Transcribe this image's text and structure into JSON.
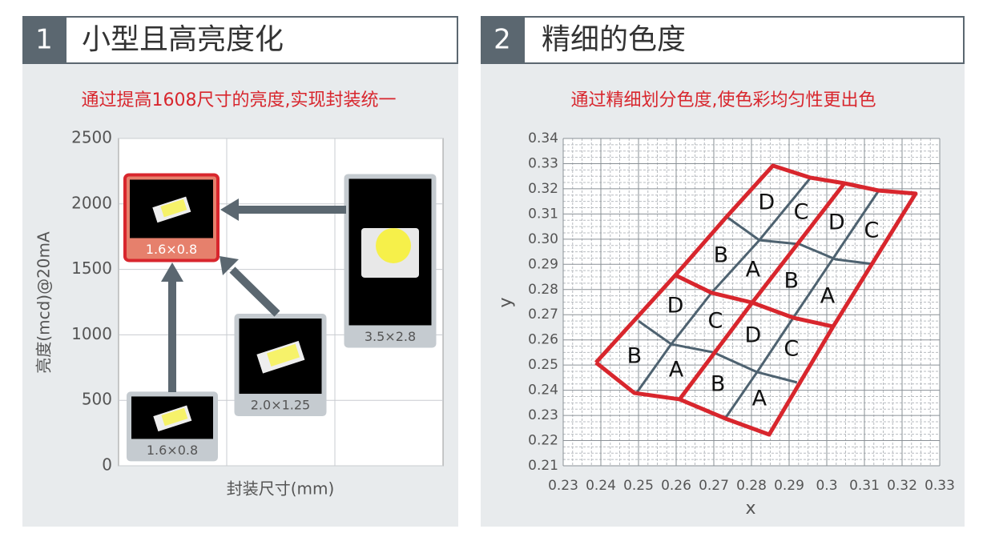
{
  "panels": [
    {
      "number": "1",
      "title": "小型且高亮度化",
      "subtitle": "通过提高1608尺寸的亮度,实现封装统一",
      "y_label": "亮度(mcd)@20mA",
      "x_label": "封装尺寸(mm)",
      "ylim": [
        0,
        2500
      ],
      "yticks": [
        0,
        500,
        1000,
        1500,
        2000,
        2500
      ],
      "packages": [
        {
          "label": "1.6×0.8",
          "brightness": 300
        },
        {
          "label": "2.0×1.25",
          "brightness": 770
        },
        {
          "label": "3.5×2.8",
          "brightness": 1565
        },
        {
          "label": "1.6×0.8",
          "brightness": 1895,
          "highlight": true
        }
      ]
    },
    {
      "number": "2",
      "title": "精细的色度",
      "subtitle": "通过精细划分色度,使色彩均匀性更出色",
      "x_label": "x",
      "y_label": "y",
      "xlim": [
        0.23,
        0.33
      ],
      "xticks": [
        0.23,
        0.24,
        0.25,
        0.26,
        0.27,
        0.28,
        0.29,
        0.3,
        0.31,
        0.32,
        0.33
      ],
      "ylim": [
        0.21,
        0.34
      ],
      "yticks": [
        0.21,
        0.22,
        0.23,
        0.24,
        0.25,
        0.26,
        0.27,
        0.28,
        0.29,
        {
          "value": 0.3,
          "label": "0.30"
        },
        0.31,
        0.32,
        0.33,
        0.34
      ],
      "minor_grid": true,
      "boundaries": [
        {
          "color": "#d8262d",
          "x": [
            0.2387,
            0.2489,
            0.2609,
            0.273,
            0.2847,
            0.3017,
            0.3236,
            0.3138,
            0.3047,
            0.2957,
            0.2857,
            0.2734,
            0.2598,
            0.2387
          ],
          "y": [
            0.251,
            0.2389,
            0.2364,
            0.2288,
            0.2224,
            0.2653,
            0.3181,
            0.3193,
            0.3222,
            0.3244,
            0.3292,
            0.3089,
            0.2857,
            0.251
          ]
        },
        {
          "color": "#d8262d",
          "x": [
            0.2598,
            0.2694,
            0.2802,
            0.2911,
            0.3017
          ],
          "y": [
            0.2857,
            0.2787,
            0.2748,
            0.2688,
            0.2653
          ]
        },
        {
          "color": "#d8262d",
          "x": [
            0.3047,
            0.2802,
            0.2609
          ],
          "y": [
            0.3222,
            0.2748,
            0.2364
          ]
        },
        {
          "color": "#4e6270",
          "x": [
            0.2957,
            0.2821,
            0.2694
          ],
          "y": [
            0.3244,
            0.2996,
            0.2787
          ]
        },
        {
          "color": "#4e6270",
          "x": [
            0.2734,
            0.2821,
            0.2928
          ],
          "y": [
            0.3089,
            0.2996,
            0.298
          ]
        },
        {
          "color": "#4e6270",
          "x": [
            0.2928,
            0.3023,
            0.3123
          ],
          "y": [
            0.298,
            0.292,
            0.2901
          ]
        },
        {
          "color": "#4e6270",
          "x": [
            0.3138,
            0.2911
          ],
          "y": [
            0.3193,
            0.2688
          ]
        },
        {
          "color": "#4e6270",
          "x": [
            0.25,
            0.2587,
            0.2698
          ],
          "y": [
            0.2675,
            0.2583,
            0.2551
          ]
        },
        {
          "color": "#4e6270",
          "x": [
            0.2694,
            0.2587,
            0.2496
          ],
          "y": [
            0.2787,
            0.2583,
            0.2392
          ]
        },
        {
          "color": "#4e6270",
          "x": [
            0.2698,
            0.2815,
            0.2921
          ],
          "y": [
            0.2551,
            0.2472,
            0.2431
          ]
        },
        {
          "color": "#4e6270",
          "x": [
            0.2911,
            0.2815,
            0.273
          ],
          "y": [
            0.2688,
            0.2472,
            0.2288
          ]
        }
      ],
      "bins": [
        {
          "label": "D",
          "x": 0.284,
          "y": 0.3143
        },
        {
          "label": "C",
          "x": 0.2932,
          "y": 0.3104
        },
        {
          "label": "D",
          "x": 0.3026,
          "y": 0.3063
        },
        {
          "label": "C",
          "x": 0.3119,
          "y": 0.3031
        },
        {
          "label": "B",
          "x": 0.2719,
          "y": 0.2933
        },
        {
          "label": "A",
          "x": 0.2804,
          "y": 0.2876
        },
        {
          "label": "B",
          "x": 0.2906,
          "y": 0.2831
        },
        {
          "label": "A",
          "x": 0.3002,
          "y": 0.2771
        },
        {
          "label": "D",
          "x": 0.2598,
          "y": 0.2733
        },
        {
          "label": "C",
          "x": 0.2704,
          "y": 0.2672
        },
        {
          "label": "D",
          "x": 0.2804,
          "y": 0.2615
        },
        {
          "label": "C",
          "x": 0.2906,
          "y": 0.2561
        },
        {
          "label": "B",
          "x": 0.2489,
          "y": 0.2532
        },
        {
          "label": "A",
          "x": 0.26,
          "y": 0.2478
        },
        {
          "label": "B",
          "x": 0.2711,
          "y": 0.2421
        },
        {
          "label": "A",
          "x": 0.2821,
          "y": 0.2364
        }
      ]
    }
  ]
}
